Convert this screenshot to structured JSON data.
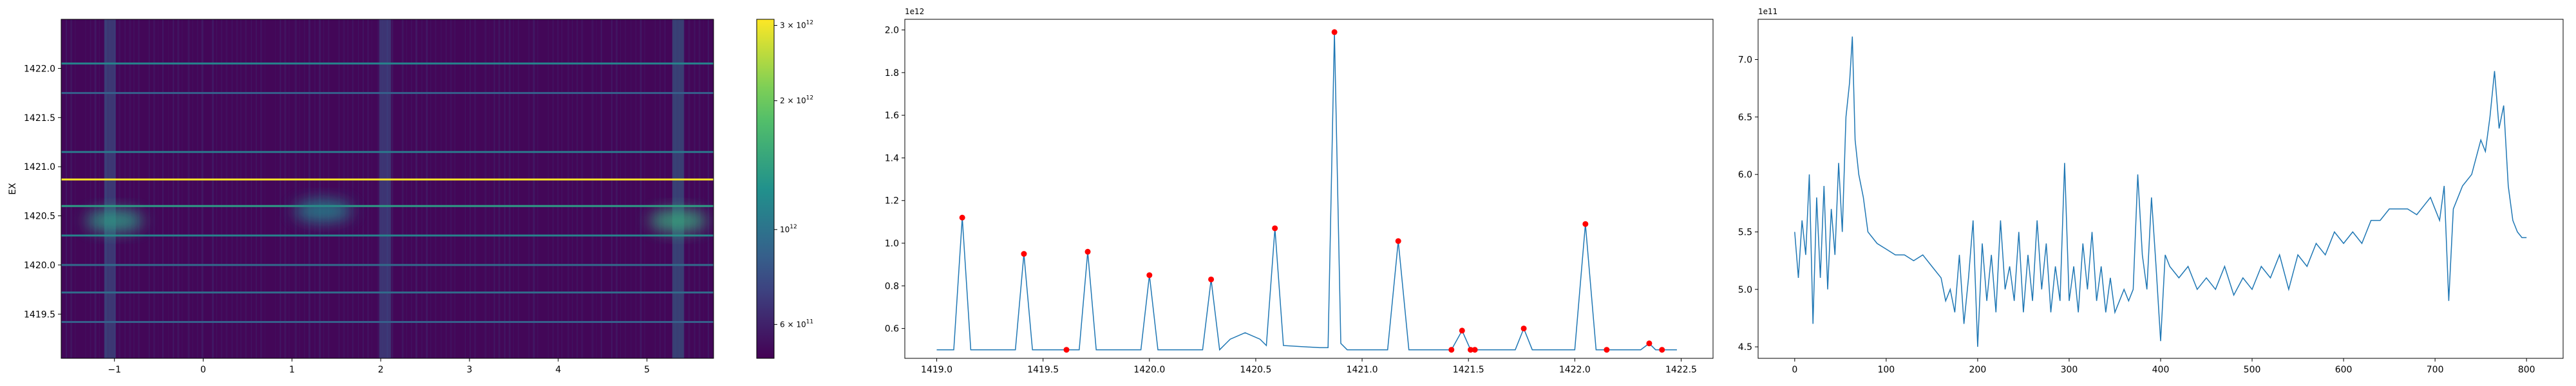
{
  "chart_data": [
    {
      "type": "heatmap",
      "title": "",
      "xlabel": "",
      "ylabel": "EX",
      "xlim": [
        -1.6,
        5.75
      ],
      "ylim": [
        1419.05,
        1422.5
      ],
      "xticks": [
        -1,
        0,
        1,
        2,
        3,
        4,
        5
      ],
      "xtick_labels": [
        "−1",
        "0",
        "1",
        "2",
        "3",
        "4",
        "5"
      ],
      "yticks": [
        1419.5,
        1420.0,
        1420.5,
        1421.0,
        1421.5,
        1422.0
      ],
      "ytick_labels": [
        "1419.5",
        "1420.0",
        "1420.5",
        "1421.0",
        "1421.5",
        "1422.0"
      ],
      "colormap": "viridis",
      "color_scale": "log",
      "colorbar": {
        "range": [
          500000000000,
          3100000000000
        ],
        "ticks": [
          600000000000,
          1000000000000,
          2000000000000,
          3000000000000
        ],
        "tick_labels": [
          "6 × 10^11",
          "10^12",
          "2 × 10^12",
          "3 × 10^12"
        ]
      },
      "horizontal_lines": [
        {
          "y": 1422.05,
          "level": 0.45
        },
        {
          "y": 1421.75,
          "level": 0.3
        },
        {
          "y": 1421.15,
          "level": 0.4
        },
        {
          "y": 1420.87,
          "level": 1.0
        },
        {
          "y": 1420.6,
          "level": 0.55
        },
        {
          "y": 1420.3,
          "level": 0.45
        },
        {
          "y": 1420.0,
          "level": 0.35
        },
        {
          "y": 1419.72,
          "level": 0.35
        },
        {
          "y": 1419.42,
          "level": 0.3
        }
      ],
      "vertical_bands": [
        {
          "x": -1.05,
          "level": 0.3
        },
        {
          "x": 2.05,
          "level": 0.28
        },
        {
          "x": 5.35,
          "level": 0.35
        }
      ],
      "blobs": [
        {
          "x": -1.0,
          "y": 1420.45,
          "level": 0.55
        },
        {
          "x": 1.35,
          "y": 1420.55,
          "level": 0.45
        },
        {
          "x": 5.35,
          "y": 1420.45,
          "level": 0.6
        }
      ]
    },
    {
      "type": "line",
      "title": "",
      "xlabel": "",
      "ylabel": "",
      "offset_label": "1e12",
      "xlim": [
        1418.85,
        1422.65
      ],
      "ylim": [
        0.46,
        2.05
      ],
      "xticks": [
        1419.0,
        1419.5,
        1420.0,
        1420.5,
        1421.0,
        1421.5,
        1422.0,
        1422.5
      ],
      "xtick_labels": [
        "1419.0",
        "1419.5",
        "1420.0",
        "1420.5",
        "1421.0",
        "1421.5",
        "1422.0",
        "1422.5"
      ],
      "yticks": [
        0.6,
        0.8,
        1.0,
        1.2,
        1.4,
        1.6,
        1.8,
        2.0
      ],
      "ytick_labels": [
        "0.6",
        "0.8",
        "1.0",
        "1.2",
        "1.4",
        "1.6",
        "1.8",
        "2.0"
      ],
      "line_color": "#1f77b4",
      "marker_color": "#ff0000",
      "series": [
        {
          "x": [
            1419.0,
            1419.08,
            1419.12,
            1419.16,
            1419.37,
            1419.41,
            1419.45,
            1419.67,
            1419.71,
            1419.75,
            1419.96,
            1420.0,
            1420.04,
            1420.25,
            1420.29,
            1420.33,
            1420.38,
            1420.45,
            1420.52,
            1420.55,
            1420.59,
            1420.63,
            1420.8,
            1420.84,
            1420.87,
            1420.9,
            1420.93,
            1421.12,
            1421.17,
            1421.22,
            1421.42,
            1421.47,
            1421.51,
            1421.53,
            1421.55,
            1421.72,
            1421.76,
            1421.8,
            1422.0,
            1422.05,
            1422.1,
            1422.2,
            1422.31,
            1422.35,
            1422.38,
            1422.41,
            1422.48
          ],
          "y": [
            0.5,
            0.5,
            1.12,
            0.5,
            0.5,
            0.95,
            0.5,
            0.5,
            0.96,
            0.5,
            0.5,
            0.85,
            0.5,
            0.5,
            0.83,
            0.5,
            0.55,
            0.58,
            0.55,
            0.52,
            1.07,
            0.52,
            0.51,
            0.51,
            1.99,
            0.53,
            0.5,
            0.5,
            1.01,
            0.5,
            0.5,
            0.59,
            0.5,
            0.5,
            0.5,
            0.5,
            0.6,
            0.5,
            0.5,
            1.09,
            0.5,
            0.5,
            0.5,
            0.53,
            0.5,
            0.5,
            0.5
          ]
        }
      ],
      "peaks": {
        "x": [
          1419.12,
          1419.41,
          1419.61,
          1419.71,
          1420.0,
          1420.29,
          1420.59,
          1420.87,
          1421.17,
          1421.42,
          1421.47,
          1421.51,
          1421.53,
          1421.76,
          1422.05,
          1422.15,
          1422.35,
          1422.41
        ],
        "y": [
          1.12,
          0.95,
          0.5,
          0.96,
          0.85,
          0.83,
          1.07,
          1.99,
          1.01,
          0.5,
          0.59,
          0.5,
          0.5,
          0.6,
          1.09,
          0.5,
          0.53,
          0.5
        ]
      }
    },
    {
      "type": "line",
      "title": "",
      "xlabel": "",
      "ylabel": "",
      "offset_label": "1e11",
      "xlim": [
        -40,
        840
      ],
      "ylim": [
        4.4,
        7.35
      ],
      "xticks": [
        0,
        100,
        200,
        300,
        400,
        500,
        600,
        700,
        800
      ],
      "xtick_labels": [
        "0",
        "100",
        "200",
        "300",
        "400",
        "500",
        "600",
        "700",
        "800"
      ],
      "yticks": [
        4.5,
        5.0,
        5.5,
        6.0,
        6.5,
        7.0
      ],
      "ytick_labels": [
        "4.5",
        "5.0",
        "5.5",
        "6.0",
        "6.5",
        "7.0"
      ],
      "line_color": "#1f77b4",
      "series": [
        {
          "x": [
            0,
            4,
            8,
            12,
            16,
            20,
            24,
            28,
            32,
            36,
            40,
            44,
            48,
            52,
            56,
            60,
            63,
            66,
            70,
            75,
            80,
            90,
            100,
            110,
            120,
            130,
            140,
            150,
            160,
            165,
            170,
            175,
            180,
            185,
            190,
            195,
            200,
            205,
            210,
            215,
            220,
            225,
            230,
            235,
            240,
            245,
            250,
            255,
            260,
            265,
            270,
            275,
            280,
            285,
            290,
            295,
            300,
            305,
            310,
            315,
            320,
            325,
            330,
            335,
            340,
            345,
            350,
            355,
            360,
            365,
            370,
            375,
            380,
            385,
            390,
            395,
            400,
            405,
            410,
            420,
            430,
            440,
            450,
            460,
            470,
            480,
            490,
            500,
            510,
            520,
            530,
            540,
            550,
            560,
            570,
            580,
            590,
            600,
            610,
            620,
            630,
            640,
            650,
            660,
            670,
            680,
            690,
            695,
            700,
            705,
            710,
            715,
            720,
            730,
            740,
            750,
            755,
            760,
            765,
            770,
            775,
            780,
            785,
            790,
            795,
            800
          ],
          "y": [
            5.5,
            5.1,
            5.6,
            5.3,
            6.0,
            4.7,
            5.8,
            5.1,
            5.9,
            5.0,
            5.7,
            5.3,
            6.1,
            5.5,
            6.5,
            6.8,
            7.2,
            6.3,
            6.0,
            5.8,
            5.5,
            5.4,
            5.35,
            5.3,
            5.3,
            5.25,
            5.3,
            5.2,
            5.1,
            4.9,
            5.0,
            4.8,
            5.3,
            4.7,
            5.1,
            5.6,
            4.5,
            5.4,
            4.9,
            5.3,
            4.8,
            5.6,
            5.0,
            5.2,
            4.9,
            5.5,
            4.8,
            5.3,
            4.9,
            5.6,
            5.0,
            5.4,
            4.8,
            5.2,
            4.9,
            6.1,
            4.9,
            5.2,
            4.8,
            5.4,
            5.0,
            5.5,
            4.9,
            5.2,
            4.8,
            5.1,
            4.8,
            4.9,
            5.0,
            4.9,
            5.0,
            6.0,
            5.3,
            5.0,
            5.8,
            5.2,
            4.55,
            5.3,
            5.2,
            5.1,
            5.2,
            5.0,
            5.1,
            5.0,
            5.2,
            4.95,
            5.1,
            5.0,
            5.2,
            5.1,
            5.3,
            5.0,
            5.3,
            5.2,
            5.4,
            5.3,
            5.5,
            5.4,
            5.5,
            5.4,
            5.6,
            5.6,
            5.7,
            5.7,
            5.7,
            5.65,
            5.75,
            5.8,
            5.7,
            5.6,
            5.9,
            4.9,
            5.7,
            5.9,
            6.0,
            6.3,
            6.2,
            6.5,
            6.9,
            6.4,
            6.6,
            5.9,
            5.6,
            5.5,
            5.45,
            5.45
          ]
        }
      ]
    }
  ]
}
